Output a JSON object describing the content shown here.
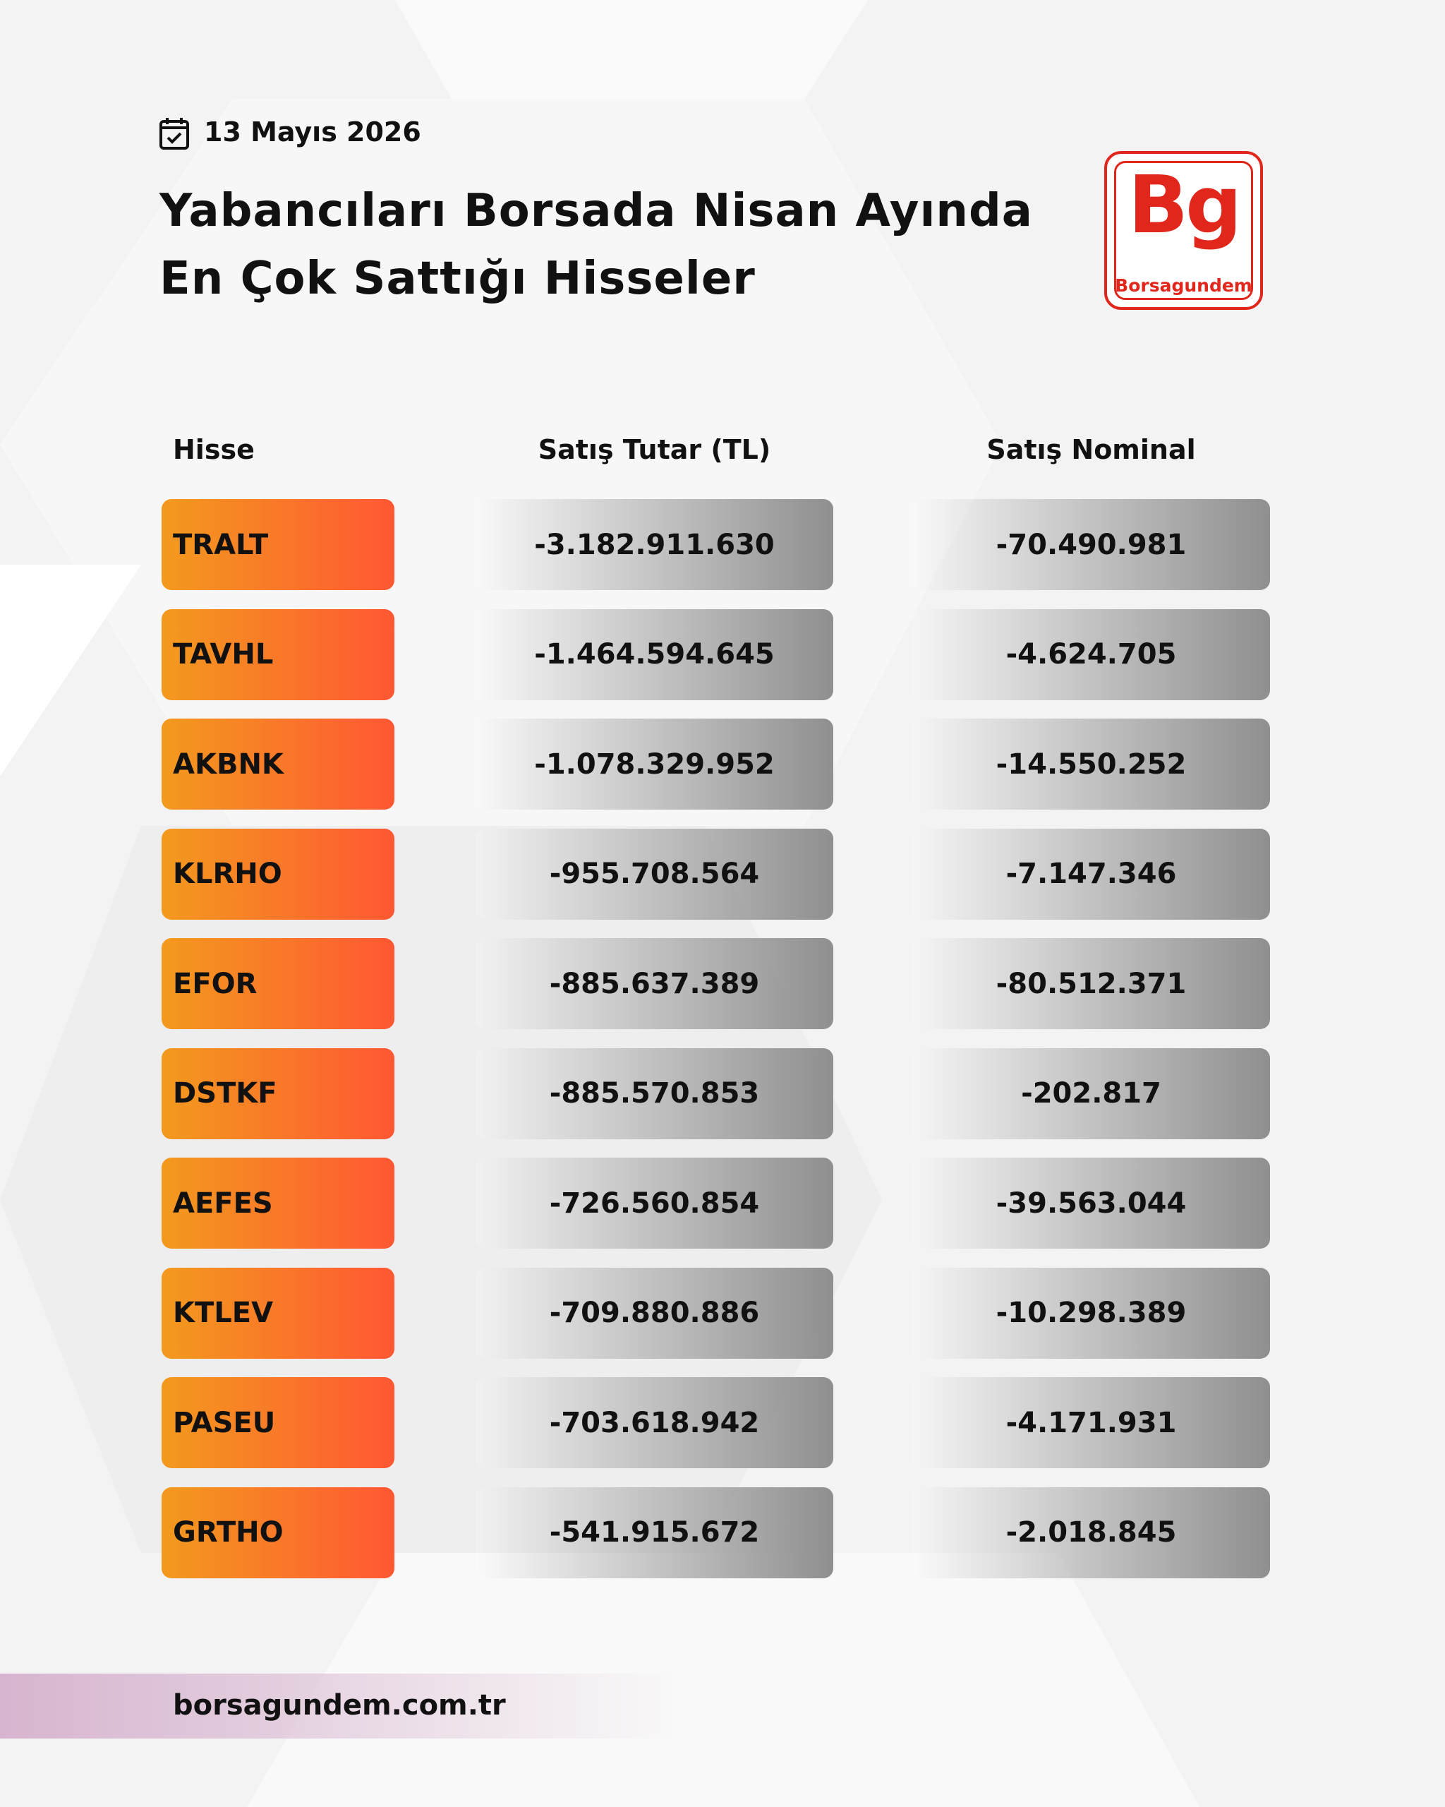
{
  "header": {
    "date": "13 Mayıs 2026",
    "title": [
      "Yabancıları Borsada Nisan Ayında",
      "En Çok Sattığı Hisseler"
    ],
    "logo_mark": "Bg",
    "logo_name": "Borsagundem"
  },
  "table": {
    "columns": [
      "Hisse",
      "Satış Tutar (TL)",
      "Satış Nominal"
    ],
    "rows": [
      [
        "TRALT",
        "-3.182.911.630",
        "-70.490.981"
      ],
      [
        "TAVHL",
        "-1.464.594.645",
        "-4.624.705"
      ],
      [
        "AKBNK",
        "-1.078.329.952",
        "-14.550.252"
      ],
      [
        "KLRHO",
        "-955.708.564",
        "-7.147.346"
      ],
      [
        "EFOR",
        "-885.637.389",
        "-80.512.371"
      ],
      [
        "DSTKF",
        "-885.570.853",
        "-202.817"
      ],
      [
        "AEFES",
        "-726.560.854",
        "-39.563.044"
      ],
      [
        "KTLEV",
        "-709.880.886",
        "-10.298.389"
      ],
      [
        "PASEU",
        "-703.618.942",
        "-4.171.931"
      ],
      [
        "GRTHO",
        "-541.915.672",
        "-2.018.845"
      ]
    ]
  },
  "footer": {
    "url": "borsagundem.com.tr"
  }
}
